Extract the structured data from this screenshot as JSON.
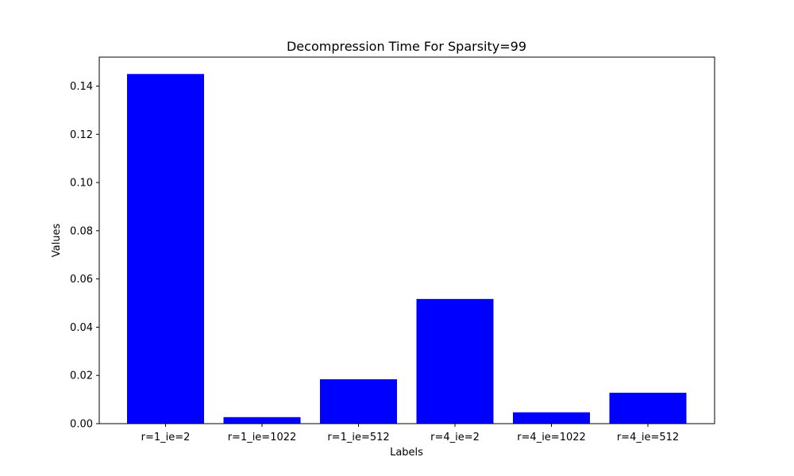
{
  "chart_data": {
    "type": "bar",
    "title": "Decompression Time For Sparsity=99",
    "xlabel": "Labels",
    "ylabel": "Values",
    "categories": [
      "r=1_ie=2",
      "r=1_ie=1022",
      "r=1_ie=512",
      "r=4_ie=2",
      "r=4_ie=1022",
      "r=4_ie=512"
    ],
    "values": [
      0.145,
      0.0027,
      0.0184,
      0.0517,
      0.0047,
      0.0128
    ],
    "ylim": [
      0,
      0.152
    ],
    "yticks": [
      "0.00",
      "0.02",
      "0.04",
      "0.06",
      "0.08",
      "0.10",
      "0.12",
      "0.14"
    ],
    "bar_color": "#0000ff",
    "grid": false
  }
}
